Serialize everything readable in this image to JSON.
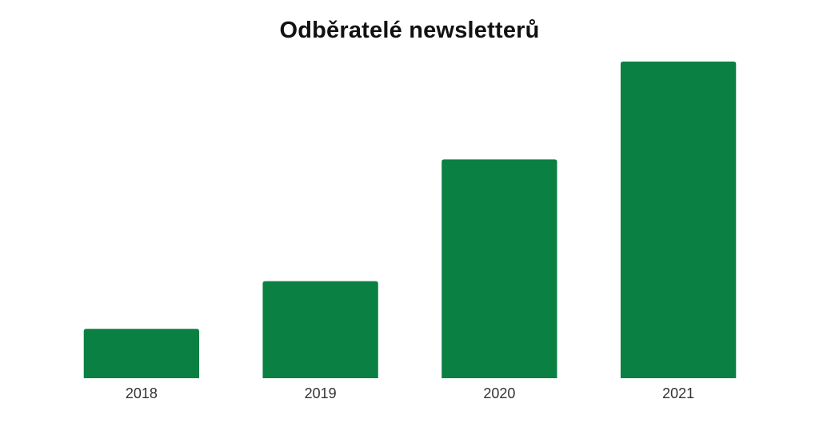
{
  "chart_data": {
    "type": "bar",
    "title": "Odběratelé newsletterů",
    "xlabel": "",
    "ylabel": "",
    "categories": [
      "2018",
      "2019",
      "2020",
      "2021"
    ],
    "values": [
      62,
      122,
      275,
      398
    ],
    "ylim": [
      0,
      400
    ],
    "grid": false,
    "legend": "none",
    "bar_color": "#0b8043"
  }
}
